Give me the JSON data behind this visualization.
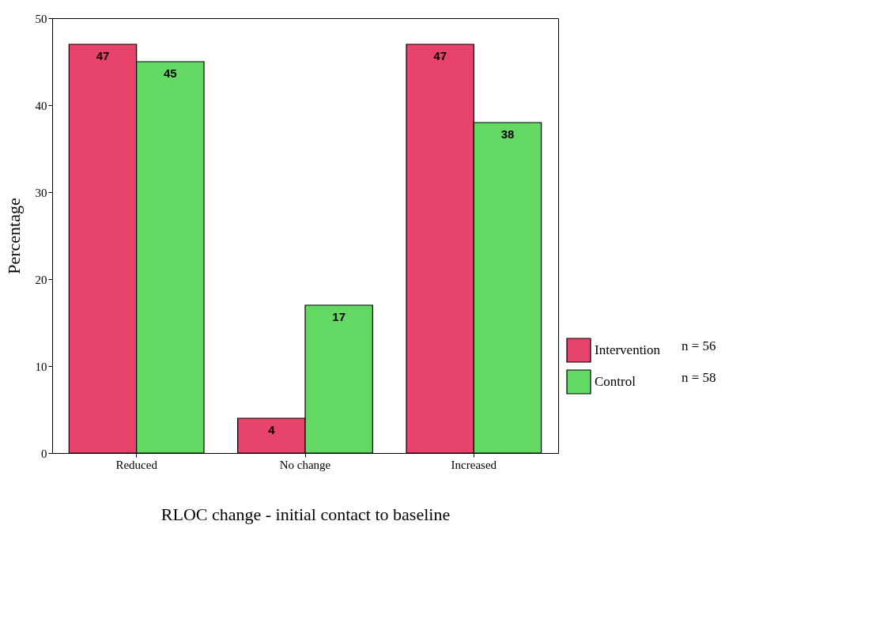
{
  "chart_data": {
    "type": "bar",
    "xlabel": "RLOC change - initial contact to baseline",
    "ylabel": "Percentage",
    "categories": [
      "Reduced",
      "No change",
      "Increased"
    ],
    "series": [
      {
        "name": "Intervention",
        "color": "#e8436b",
        "values": [
          47,
          4,
          47
        ]
      },
      {
        "name": "Control",
        "color": "#63d863",
        "values": [
          45,
          17,
          38
        ]
      }
    ],
    "ylim": [
      0,
      50
    ],
    "yticks": [
      0,
      10,
      20,
      30,
      40,
      50
    ],
    "grid": false,
    "data_labels": true,
    "legend": "right",
    "annotations": [
      "n = 56",
      "n = 58"
    ]
  }
}
